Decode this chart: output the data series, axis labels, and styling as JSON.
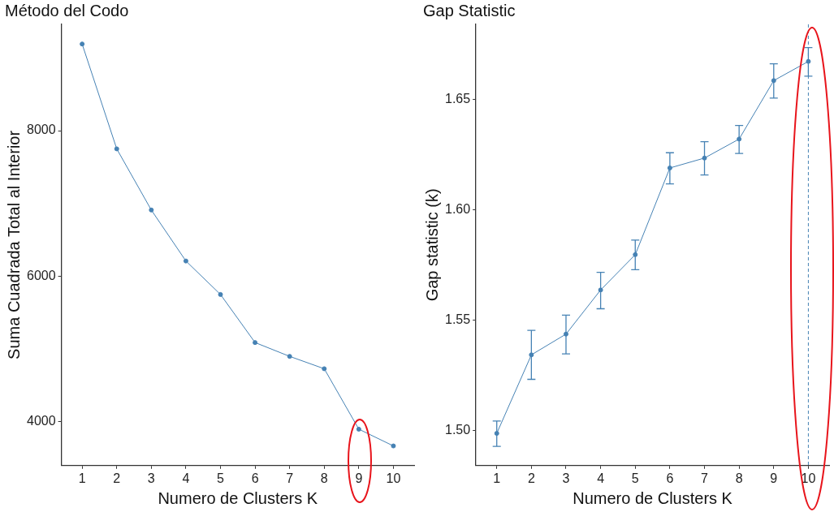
{
  "chart_data": [
    {
      "type": "line",
      "title": "Método del Codo",
      "xlabel": "Numero de Clusters K",
      "ylabel": "Suma Cuadrada Total al Interior",
      "x": [
        1,
        2,
        3,
        4,
        5,
        6,
        7,
        8,
        9,
        10
      ],
      "xlim": [
        0.4,
        10.6
      ],
      "xticks": [
        1,
        2,
        3,
        4,
        5,
        6,
        7,
        8,
        9,
        10
      ],
      "ylim": [
        3400,
        9460
      ],
      "yticks": [
        4000,
        6000,
        8000
      ],
      "series": [
        {
          "color": "#4682b4",
          "values": [
            9190,
            7750,
            6910,
            6210,
            5750,
            5090,
            4900,
            4730,
            3900,
            3670
          ]
        }
      ],
      "marker": "circle",
      "line_style": "solid",
      "grid": false,
      "legend": false
    },
    {
      "type": "line",
      "title": "Gap Statistic",
      "xlabel": "Numero de Clusters K",
      "ylabel": "Gap statistic (k)",
      "x": [
        1,
        2,
        3,
        4,
        5,
        6,
        7,
        8,
        9,
        10
      ],
      "xlim": [
        0.4,
        10.6
      ],
      "xticks": [
        1,
        2,
        3,
        4,
        5,
        6,
        7,
        8,
        9,
        10
      ],
      "ylim": [
        1.484,
        1.684
      ],
      "yticks": [
        {
          "value": 1.5,
          "label": "1.50"
        },
        {
          "value": 1.55,
          "label": "1.55"
        },
        {
          "value": 1.6,
          "label": "1.60"
        },
        {
          "value": 1.65,
          "label": "1.65"
        }
      ],
      "series": [
        {
          "color": "#4682b4",
          "values": [
            1.4986,
            1.5342,
            1.5436,
            1.5636,
            1.5796,
            1.6189,
            1.6234,
            1.632,
            1.6585,
            1.6672
          ],
          "errors": [
            [
              1.4927,
              1.5042
            ],
            [
              1.5231,
              1.5453
            ],
            [
              1.5346,
              1.5522
            ],
            [
              1.5551,
              1.5716
            ],
            [
              1.5728,
              1.5862
            ],
            [
              1.6117,
              1.6258
            ],
            [
              1.6157,
              1.6308
            ],
            [
              1.6255,
              1.6382
            ],
            [
              1.6506,
              1.6661
            ],
            [
              1.6605,
              1.6735
            ]
          ]
        }
      ],
      "ref_lines": [
        {
          "axis": "x",
          "value": 10,
          "color": "#4682b4",
          "line_style": "dashed"
        }
      ],
      "marker": "circle",
      "line_style": "solid",
      "grid": false,
      "legend": false
    }
  ]
}
